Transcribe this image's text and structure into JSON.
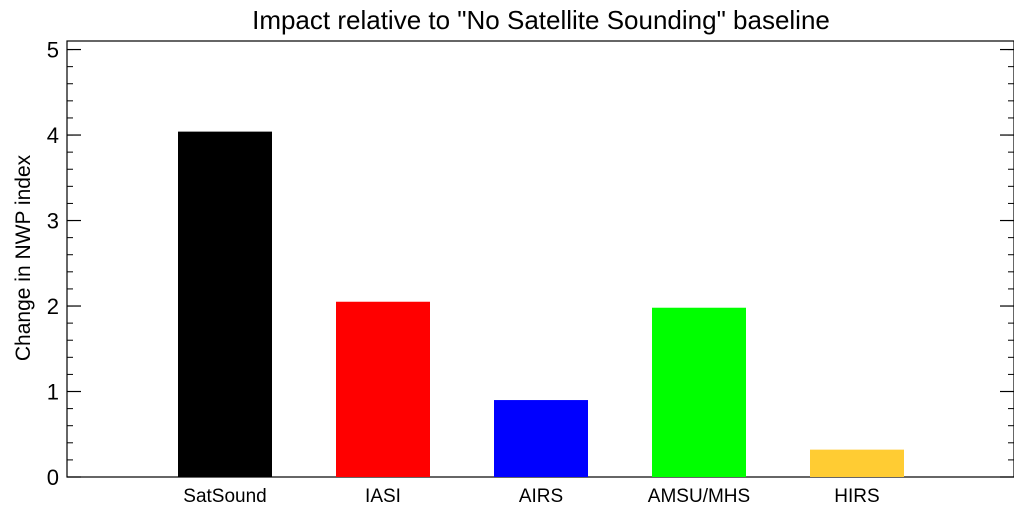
{
  "chart_data": {
    "type": "bar",
    "title": "Impact relative to \"No Satellite Sounding\" baseline",
    "xlabel": "",
    "ylabel": "Change in NWP index",
    "ylim": [
      0,
      5.1
    ],
    "yticks": [
      0,
      1,
      2,
      3,
      4,
      5
    ],
    "grid": false,
    "categories": [
      "SatSound",
      "IASI",
      "AIRS",
      "AMSU/MHS",
      "HIRS"
    ],
    "values": [
      4.04,
      2.05,
      0.9,
      1.98,
      0.32
    ],
    "colors": [
      "#000000",
      "#ff0000",
      "#0000ff",
      "#00ff00",
      "#ffcc33"
    ]
  }
}
